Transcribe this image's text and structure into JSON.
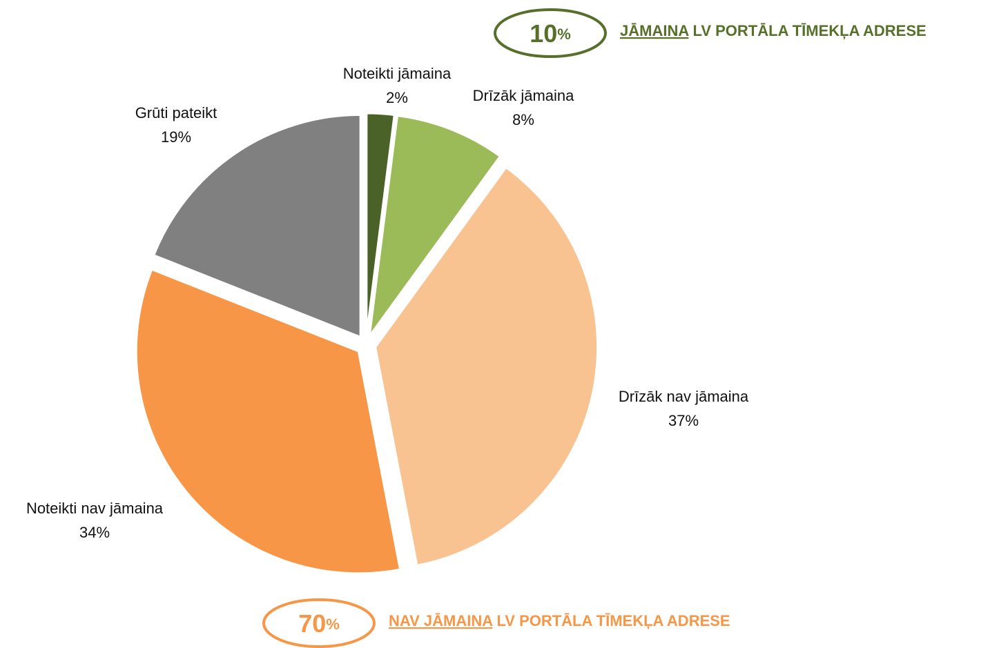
{
  "chart_data": {
    "type": "pie",
    "categories": [
      "Noteikti jāmaina",
      "Drīzāk jāmaina",
      "Drīzāk nav jāmaina",
      "Noteikti nav jāmaina",
      "Grūti pateikt"
    ],
    "values": [
      2,
      8,
      37,
      34,
      19
    ],
    "value_labels": [
      "2%",
      "8%",
      "37%",
      "34%",
      "19%"
    ],
    "colors": [
      "#4a6228",
      "#9bbb59",
      "#f9c291",
      "#f79646",
      "#808080"
    ],
    "annotations": [
      {
        "value": "10",
        "unit": "%",
        "underlined": "JĀMAINA",
        "text": " LV PORTĀLA TĪMEKĻA ADRESE",
        "color": "#56702a"
      },
      {
        "value": "70",
        "unit": "%",
        "underlined": "NAV JĀMAINA",
        "text": " LV PORTĀLA TĪMEKĻA ADRESE",
        "color": "#f79646"
      }
    ]
  }
}
